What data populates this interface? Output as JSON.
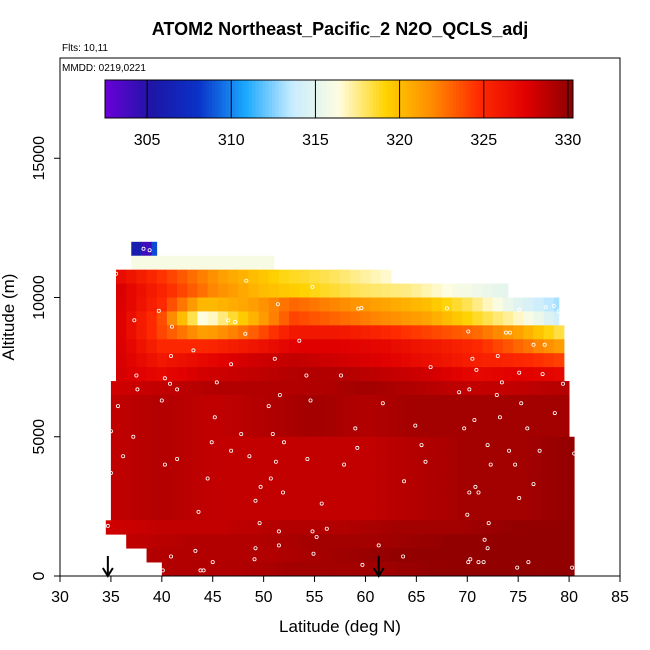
{
  "chart_data": {
    "type": "heatmap",
    "title": "ATOM2 Northeast_Pacific_2 N2O_QCLS_adj",
    "flights_label": "Flts: 10,11",
    "dates_label": "MMDD: 0219,0221",
    "xlabel": "Latitude (deg N)",
    "ylabel": "Altitude (m)",
    "xlim": [
      30,
      85
    ],
    "ylim": [
      0,
      18600
    ],
    "x_ticks": [
      "30",
      "35",
      "40",
      "45",
      "50",
      "55",
      "60",
      "65",
      "70",
      "75",
      "80",
      "85"
    ],
    "y_ticks": [
      "0",
      "5000",
      "10000",
      "15000"
    ],
    "colorbar": {
      "range": [
        302.5,
        330.3
      ],
      "ticks": [
        "305",
        "310",
        "315",
        "320",
        "325",
        "330"
      ],
      "colors": [
        "#6a00d8",
        "#1d16a6",
        "#0a32c8",
        "#1aa8ff",
        "#c8ecff",
        "#fffde0",
        "#ffd200",
        "#ff8a00",
        "#ff2a00",
        "#e00000",
        "#8a0000"
      ]
    },
    "grid": false,
    "legend": "colorbar at top",
    "arrow_latitudes": [
      34.7,
      61.3
    ],
    "bin_width_deg": 1,
    "bin_height_m": 500,
    "layers": [
      {
        "alt": [
          11500,
          12000
        ],
        "lat": [
          37.0,
          39.5
        ],
        "values": [
          312,
          304.5,
          303.5,
          305,
          311
        ]
      },
      {
        "alt": [
          11000,
          11500
        ],
        "lat": [
          37.0,
          51.0
        ],
        "values": [
          316
        ]
      },
      {
        "alt": [
          10500,
          11000
        ],
        "lat": [
          35.5,
          62.5
        ],
        "values": [
          327,
          324,
          321,
          319,
          318,
          316.5
        ]
      },
      {
        "alt": [
          10000,
          10500
        ],
        "lat": [
          35.5,
          74.0
        ],
        "values": [
          328,
          325,
          322,
          320,
          319,
          318,
          317.5,
          316,
          315
        ]
      },
      {
        "alt": [
          9500,
          10000
        ],
        "lat": [
          35.5,
          79.0
        ],
        "values": [
          328,
          325,
          320,
          321,
          323,
          322,
          321,
          320,
          318,
          315,
          313
        ]
      },
      {
        "alt": [
          9000,
          9500
        ],
        "lat": [
          35.5,
          79.0
        ],
        "values": [
          328,
          324,
          316,
          320,
          324,
          323,
          322,
          321,
          319,
          317,
          314
        ]
      },
      {
        "alt": [
          8500,
          9000
        ],
        "lat": [
          35.5,
          79.5
        ],
        "values": [
          328,
          324,
          321,
          323,
          326,
          326,
          325,
          324,
          323,
          321,
          318
        ]
      },
      {
        "alt": [
          8000,
          8500
        ],
        "lat": [
          35.5,
          79.5
        ],
        "values": [
          328,
          325,
          325,
          326,
          327.5,
          327.5,
          327,
          326,
          325,
          323,
          321
        ]
      },
      {
        "alt": [
          7500,
          8000
        ],
        "lat": [
          35.5,
          79.5
        ],
        "values": [
          328,
          326,
          327,
          328,
          328.5,
          328,
          327.5,
          326.5,
          325.5,
          325,
          324
        ]
      },
      {
        "alt": [
          7000,
          7500
        ],
        "lat": [
          35.5,
          79.5
        ],
        "values": [
          328,
          327,
          328,
          328.5,
          329,
          329,
          328.5,
          328,
          327,
          327.5,
          327
        ]
      },
      {
        "alt": [
          6500,
          7000
        ],
        "lat": [
          35.0,
          80.0
        ],
        "values": [
          328,
          328.5,
          329,
          329,
          329,
          329.5,
          329,
          328.5,
          328.5,
          329
        ]
      },
      {
        "alt": [
          5000,
          6500
        ],
        "lat": [
          35.0,
          80.0
        ],
        "values": [
          328.5,
          329,
          328.5,
          329,
          329.5,
          329,
          329.5,
          329.5,
          329.5,
          329.5
        ]
      },
      {
        "alt": [
          2000,
          5000
        ],
        "lat": [
          35.0,
          80.5
        ],
        "values": [
          328.5,
          329,
          328.5,
          328.5,
          328.5,
          328.5,
          329,
          329.5,
          329.5,
          330
        ]
      },
      {
        "alt": [
          1500,
          2000
        ],
        "lat": [
          34.5,
          80.5
        ],
        "values": [
          328,
          328.5,
          328.5,
          329,
          329,
          329.5,
          329.5,
          330,
          330
        ]
      },
      {
        "alt": [
          1000,
          1500
        ],
        "lat": [
          36.5,
          80.5
        ],
        "values": [
          328.5,
          329,
          329,
          329.5,
          329.5,
          330,
          330,
          330
        ]
      },
      {
        "alt": [
          500,
          1000
        ],
        "lat": [
          38.5,
          80.5
        ],
        "values": [
          329,
          329,
          329,
          329.5,
          330,
          330,
          330,
          330
        ]
      },
      {
        "alt": [
          0,
          500
        ],
        "lat": [
          40.0,
          80.5
        ],
        "values": [
          329,
          329,
          329.5,
          329.5,
          330,
          330,
          330
        ]
      }
    ],
    "samples": [
      [
        35.3,
        10850
      ],
      [
        35.5,
        10850
      ],
      [
        38.2,
        11750
      ],
      [
        38.8,
        11700
      ],
      [
        40.0,
        11650
      ],
      [
        48.3,
        10600
      ],
      [
        54.8,
        10380
      ],
      [
        51.4,
        9760
      ],
      [
        59.3,
        9600
      ],
      [
        59.6,
        9620
      ],
      [
        68.0,
        9610
      ],
      [
        75.1,
        9560
      ],
      [
        77.7,
        9650
      ],
      [
        78.5,
        9700
      ],
      [
        79.0,
        9500
      ],
      [
        37.3,
        9180
      ],
      [
        39.7,
        9520
      ],
      [
        46.5,
        9180
      ],
      [
        47.2,
        9120
      ],
      [
        41.0,
        8950
      ],
      [
        73.8,
        8740
      ],
      [
        74.2,
        8740
      ],
      [
        70.1,
        8780
      ],
      [
        48.2,
        8700
      ],
      [
        53.5,
        8450
      ],
      [
        76.5,
        8300
      ],
      [
        77.6,
        8300
      ],
      [
        43.1,
        8100
      ],
      [
        40.9,
        7900
      ],
      [
        51.1,
        7800
      ],
      [
        70.5,
        7800
      ],
      [
        73.0,
        7900
      ],
      [
        46.8,
        7600
      ],
      [
        66.4,
        7500
      ],
      [
        70.9,
        7400
      ],
      [
        75.1,
        7300
      ],
      [
        77.4,
        7250
      ],
      [
        37.5,
        7200
      ],
      [
        40.3,
        7100
      ],
      [
        54.2,
        7200
      ],
      [
        57.6,
        7200
      ],
      [
        45.4,
        6950
      ],
      [
        73.4,
        6950
      ],
      [
        79.4,
        6900
      ],
      [
        40.8,
        6900
      ],
      [
        37.6,
        6700
      ],
      [
        41.5,
        6700
      ],
      [
        69.2,
        6600
      ],
      [
        70.2,
        6700
      ],
      [
        72.9,
        6500
      ],
      [
        40.0,
        6300
      ],
      [
        54.6,
        6300
      ],
      [
        51.6,
        6500
      ],
      [
        35.7,
        6100
      ],
      [
        50.5,
        6100
      ],
      [
        61.7,
        6200
      ],
      [
        75.3,
        6200
      ],
      [
        78.6,
        5850
      ],
      [
        45.2,
        5700
      ],
      [
        73.2,
        5700
      ],
      [
        70.7,
        5600
      ],
      [
        64.9,
        5400
      ],
      [
        59.0,
        5300
      ],
      [
        50.9,
        5100
      ],
      [
        47.8,
        5100
      ],
      [
        69.7,
        5300
      ],
      [
        75.9,
        5300
      ],
      [
        80.4,
        5300
      ],
      [
        35.0,
        5200
      ],
      [
        37.2,
        5000
      ],
      [
        44.9,
        4800
      ],
      [
        52.0,
        4800
      ],
      [
        65.5,
        4700
      ],
      [
        59.2,
        4600
      ],
      [
        72.0,
        4700
      ],
      [
        74.1,
        4500
      ],
      [
        77.1,
        4500
      ],
      [
        80.5,
        4400
      ],
      [
        46.8,
        4500
      ],
      [
        36.2,
        4300
      ],
      [
        41.5,
        4200
      ],
      [
        48.6,
        4300
      ],
      [
        54.3,
        4200
      ],
      [
        51.2,
        4100
      ],
      [
        65.9,
        4100
      ],
      [
        72.3,
        4000
      ],
      [
        40.3,
        4000
      ],
      [
        57.9,
        4000
      ],
      [
        74.7,
        4000
      ],
      [
        35.0,
        3700
      ],
      [
        44.5,
        3500
      ],
      [
        50.7,
        3500
      ],
      [
        49.7,
        3200
      ],
      [
        63.8,
        3400
      ],
      [
        76.5,
        3300
      ],
      [
        51.9,
        3000
      ],
      [
        70.8,
        3200
      ],
      [
        70.2,
        3000
      ],
      [
        71.1,
        3000
      ],
      [
        75.1,
        2800
      ],
      [
        43.6,
        2300
      ],
      [
        49.2,
        2700
      ],
      [
        55.7,
        2600
      ],
      [
        70.0,
        2200
      ],
      [
        49.6,
        1900
      ],
      [
        54.8,
        1600
      ],
      [
        55.2,
        1400
      ],
      [
        56.2,
        1700
      ],
      [
        72.1,
        1900
      ],
      [
        51.5,
        1600
      ],
      [
        34.7,
        1800
      ],
      [
        71.7,
        1300
      ],
      [
        54.9,
        800
      ],
      [
        49.2,
        1000
      ],
      [
        51.5,
        1100
      ],
      [
        61.3,
        1100
      ],
      [
        72.0,
        1000
      ],
      [
        43.3,
        900
      ],
      [
        49.1,
        600
      ],
      [
        40.9,
        700
      ],
      [
        45.0,
        500
      ],
      [
        63.7,
        700
      ],
      [
        70.1,
        500
      ],
      [
        71.1,
        500
      ],
      [
        70.3,
        600
      ],
      [
        71.6,
        500
      ],
      [
        76.0,
        500
      ],
      [
        37.4,
        500
      ],
      [
        43.8,
        200
      ],
      [
        40.1,
        200
      ],
      [
        44.1,
        200
      ],
      [
        59.7,
        400
      ],
      [
        74.9,
        300
      ],
      [
        80.3,
        300
      ]
    ]
  }
}
